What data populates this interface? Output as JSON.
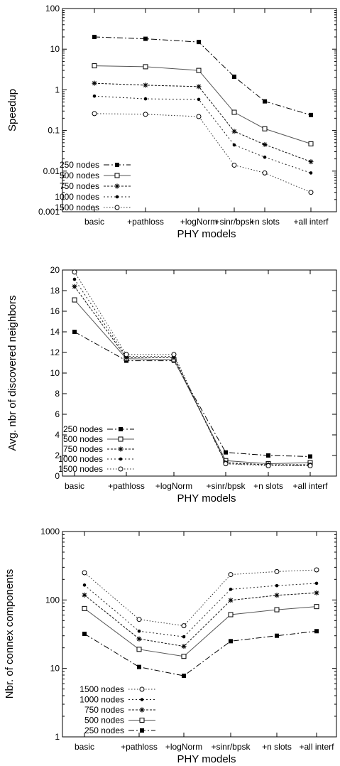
{
  "chart_data": [
    {
      "type": "line",
      "xlabel": "PHY models",
      "ylabel": "Speedup",
      "yscale": "log",
      "ylim": [
        0.001,
        100
      ],
      "yticks": [
        "0.001",
        "0.01",
        "0.1",
        "1",
        "10",
        "100"
      ],
      "categories": [
        "basic",
        "+pathloss",
        "+logNorm",
        "+sinr/bpsk",
        "+n slots",
        "+all interf"
      ],
      "legend_position": "bottom-left",
      "series": [
        {
          "name": "250 nodes",
          "marker": "filled-square",
          "values": [
            20,
            18,
            15,
            2.1,
            0.52,
            0.24
          ]
        },
        {
          "name": "500 nodes",
          "marker": "open-square",
          "values": [
            3.9,
            3.7,
            3.0,
            0.28,
            0.11,
            0.047
          ]
        },
        {
          "name": "750 nodes",
          "marker": "star",
          "values": [
            1.45,
            1.3,
            1.2,
            0.095,
            0.045,
            0.017
          ]
        },
        {
          "name": "1000 nodes",
          "marker": "dot",
          "values": [
            0.7,
            0.6,
            0.58,
            0.044,
            0.022,
            0.009
          ]
        },
        {
          "name": "1500 nodes",
          "marker": "open-circle",
          "values": [
            0.26,
            0.25,
            0.22,
            0.014,
            0.009,
            0.003
          ]
        }
      ]
    },
    {
      "type": "line",
      "xlabel": "PHY models",
      "ylabel": "Avg. nbr of discovered neighbors",
      "yscale": "linear",
      "ylim": [
        0,
        20
      ],
      "yticks": [
        "0",
        "2",
        "4",
        "6",
        "8",
        "10",
        "12",
        "14",
        "16",
        "18",
        "20"
      ],
      "categories": [
        "basic",
        "+pathloss",
        "+logNorm",
        "+sinr/bpsk",
        "+n slots",
        "+all interf"
      ],
      "legend_position": "bottom-left",
      "series": [
        {
          "name": "250 nodes",
          "marker": "filled-square",
          "values": [
            14.0,
            11.2,
            11.2,
            2.3,
            2.0,
            1.9
          ]
        },
        {
          "name": "500 nodes",
          "marker": "open-square",
          "values": [
            17.1,
            11.4,
            11.3,
            1.5,
            1.2,
            1.3
          ]
        },
        {
          "name": "750 nodes",
          "marker": "star",
          "values": [
            18.4,
            11.5,
            11.5,
            1.3,
            1.1,
            1.1
          ]
        },
        {
          "name": "1000 nodes",
          "marker": "dot",
          "values": [
            19.1,
            11.6,
            11.6,
            1.2,
            1.1,
            1.0
          ]
        },
        {
          "name": "1500 nodes",
          "marker": "open-circle",
          "values": [
            19.8,
            11.8,
            11.8,
            1.2,
            1.0,
            1.0
          ]
        }
      ]
    },
    {
      "type": "line",
      "xlabel": "PHY models",
      "ylabel": "Nbr. of connex components",
      "yscale": "log",
      "ylim": [
        1,
        1000
      ],
      "yticks": [
        "1",
        "10",
        "100",
        "1000"
      ],
      "categories": [
        "basic",
        "+pathloss",
        "+logNorm",
        "+sinr/bpsk",
        "+n slots",
        "+all interf"
      ],
      "legend_position": "bottom-left",
      "series": [
        {
          "name": "1500 nodes",
          "marker": "open-circle",
          "values": [
            250,
            52,
            42,
            235,
            260,
            275
          ]
        },
        {
          "name": "1000 nodes",
          "marker": "dot",
          "values": [
            165,
            35,
            29,
            143,
            162,
            175
          ]
        },
        {
          "name": "750 nodes",
          "marker": "star",
          "values": [
            118,
            27,
            21,
            99,
            117,
            127
          ]
        },
        {
          "name": "500 nodes",
          "marker": "open-square",
          "values": [
            75,
            19,
            15,
            61,
            72,
            80
          ]
        },
        {
          "name": "250 nodes",
          "marker": "filled-square",
          "values": [
            32,
            10.5,
            7.8,
            25,
            30,
            35
          ]
        }
      ]
    }
  ]
}
